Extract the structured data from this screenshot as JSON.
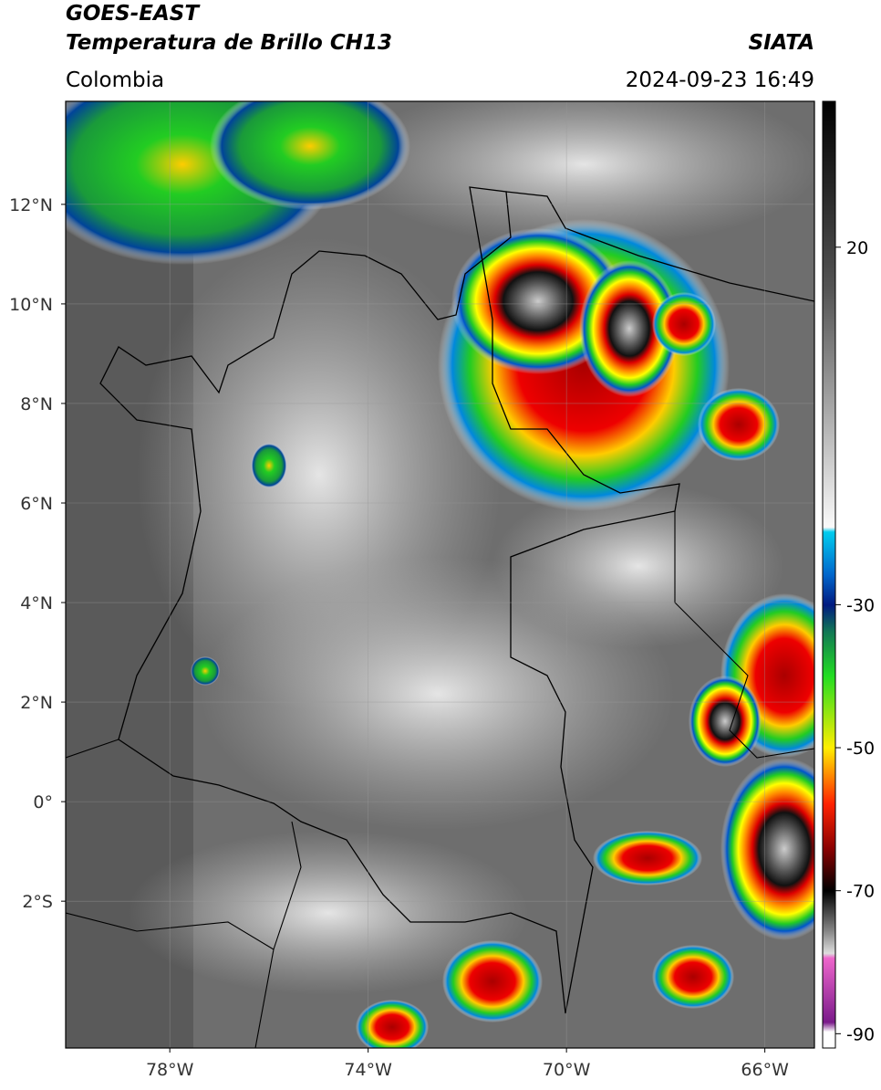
{
  "header": {
    "title": "GOES-EAST",
    "subtitle": "Temperatura de Brillo CH13",
    "source": "SIATA",
    "region": "Colombia",
    "datetime": "2024-09-23 16:49"
  },
  "map": {
    "lonlim": [
      -80.1,
      -65
    ],
    "latlim": [
      -4.95,
      14.07
    ],
    "lat_ticks": [
      {
        "value": 12,
        "label": "12°N"
      },
      {
        "value": 10,
        "label": "10°N"
      },
      {
        "value": 8,
        "label": "8°N"
      },
      {
        "value": 6,
        "label": "6°N"
      },
      {
        "value": 4,
        "label": "4°N"
      },
      {
        "value": 2,
        "label": "2°N"
      },
      {
        "value": 0,
        "label": "0°"
      },
      {
        "value": -2,
        "label": "2°S"
      }
    ],
    "lon_ticks": [
      {
        "value": -78,
        "label": "78°W"
      },
      {
        "value": -74,
        "label": "74°W"
      },
      {
        "value": -70,
        "label": "70°W"
      },
      {
        "value": -66,
        "label": "66°W"
      }
    ]
  },
  "colorbar": {
    "lim": [
      -92,
      40.4
    ],
    "ticks": [
      20,
      -30,
      -50,
      -70,
      -90
    ]
  }
}
